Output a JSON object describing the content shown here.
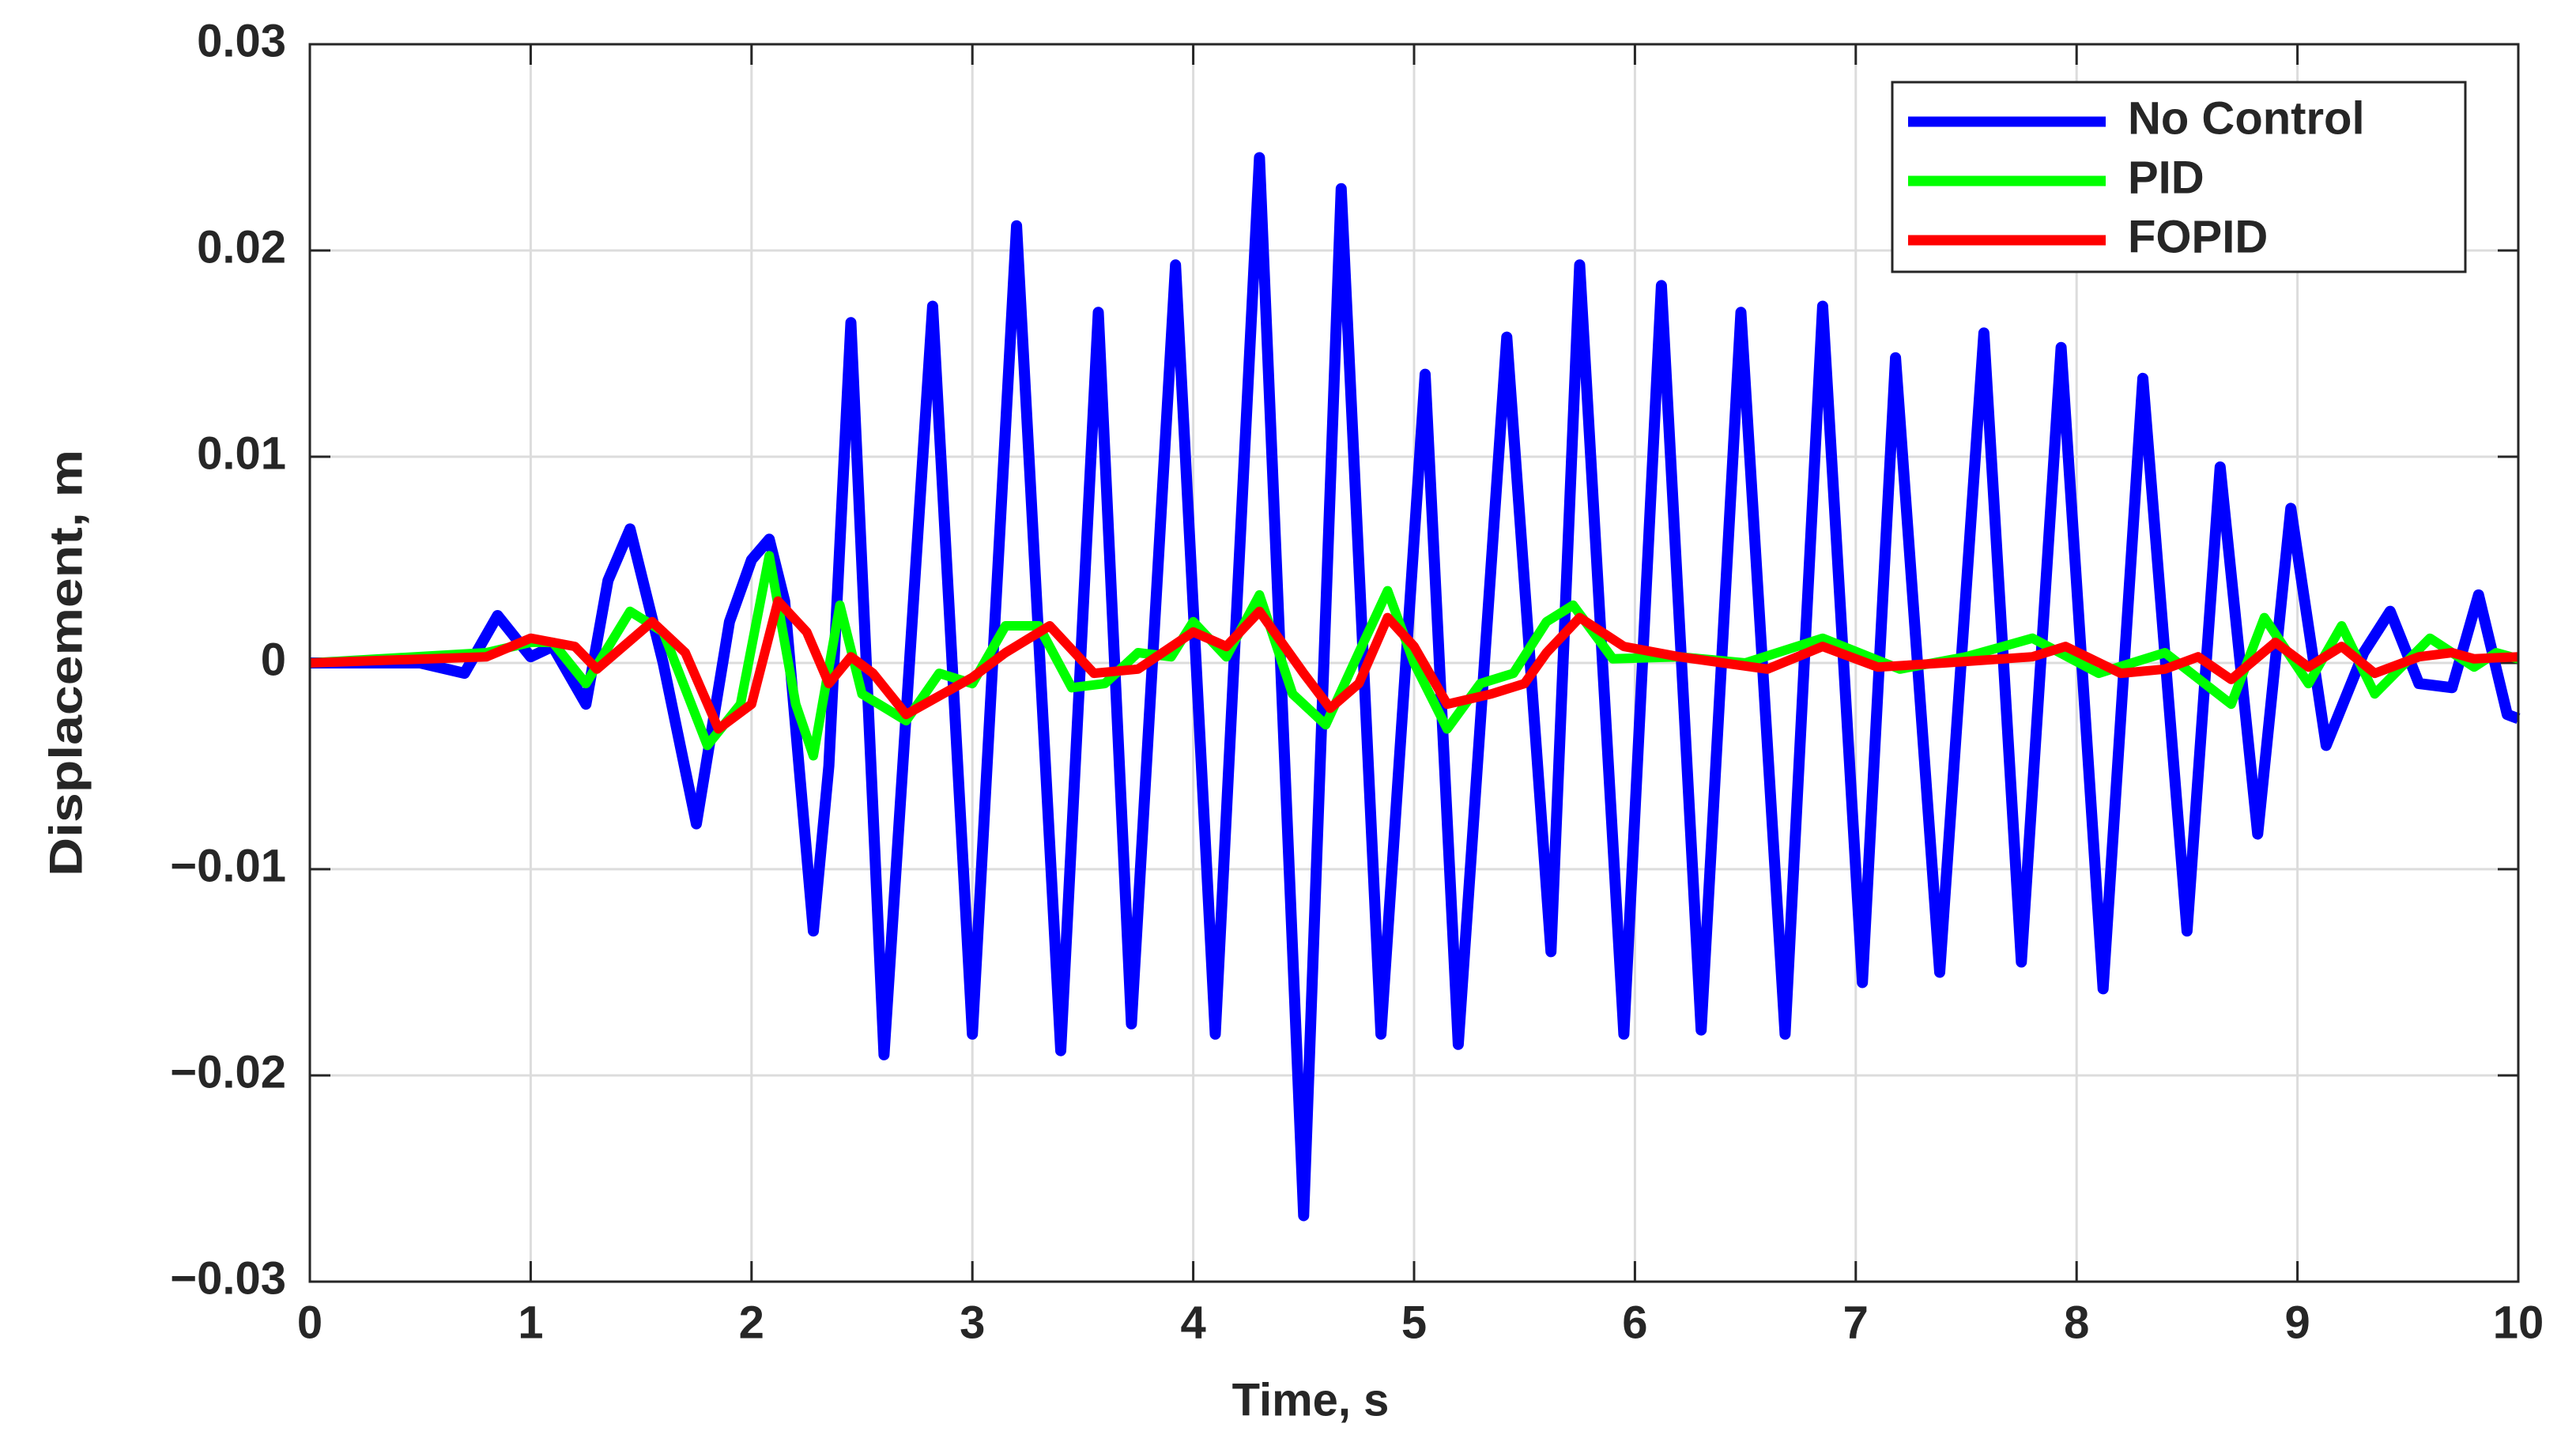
{
  "chart_data": {
    "type": "line",
    "xlabel": "Time, s",
    "ylabel": "Displacement, m",
    "xlim": [
      0,
      10
    ],
    "ylim": [
      -0.03,
      0.03
    ],
    "xticks": [
      0,
      1,
      2,
      3,
      4,
      5,
      6,
      7,
      8,
      9,
      10
    ],
    "yticks": [
      {
        "value": -0.03,
        "label": "−0.03"
      },
      {
        "value": -0.02,
        "label": "−0.02"
      },
      {
        "value": -0.01,
        "label": "−0.01"
      },
      0,
      0.01,
      0.02,
      0.03
    ],
    "grid": true,
    "legend": "upper right",
    "series": [
      {
        "name": "No Control",
        "color": "#0000ff",
        "x": [
          0,
          0.3,
          0.5,
          0.7,
          0.85,
          1.0,
          1.1,
          1.25,
          1.35,
          1.45,
          1.6,
          1.75,
          1.9,
          2.0,
          2.08,
          2.15,
          2.28,
          2.35,
          2.45,
          2.6,
          2.82,
          3.0,
          3.2,
          3.4,
          3.57,
          3.72,
          3.92,
          4.1,
          4.3,
          4.5,
          4.67,
          4.85,
          5.05,
          5.2,
          5.42,
          5.62,
          5.75,
          5.95,
          6.12,
          6.3,
          6.48,
          6.68,
          6.85,
          7.03,
          7.18,
          7.38,
          7.58,
          7.75,
          7.93,
          8.12,
          8.3,
          8.5,
          8.65,
          8.82,
          8.97,
          9.13,
          9.3,
          9.42,
          9.55,
          9.7,
          9.82,
          9.95,
          10
        ],
        "values": [
          0,
          0,
          0,
          -0.0005,
          0.0023,
          0.0003,
          0.0008,
          -0.002,
          0.004,
          0.0065,
          0,
          -0.0078,
          0.002,
          0.005,
          0.006,
          0.003,
          -0.013,
          -0.005,
          0.0165,
          -0.019,
          0.0173,
          -0.018,
          0.0212,
          -0.0188,
          0.017,
          -0.0175,
          0.0193,
          -0.018,
          0.0245,
          -0.0268,
          0.023,
          -0.018,
          0.014,
          -0.0185,
          0.0158,
          -0.014,
          0.0193,
          -0.018,
          0.0183,
          -0.0178,
          0.017,
          -0.018,
          0.0173,
          -0.0155,
          0.0148,
          -0.015,
          0.016,
          -0.0145,
          0.0153,
          -0.0158,
          0.0138,
          -0.013,
          0.0095,
          -0.0083,
          0.0075,
          -0.004,
          0.0005,
          0.0025,
          -0.001,
          -0.0012,
          0.0033,
          -0.0025,
          -0.0027
        ]
      },
      {
        "name": "PID",
        "color": "#00ff00",
        "x": [
          0,
          0.8,
          1.0,
          1.1,
          1.25,
          1.45,
          1.6,
          1.8,
          1.95,
          2.08,
          2.2,
          2.28,
          2.4,
          2.5,
          2.7,
          2.85,
          3.0,
          3.15,
          3.3,
          3.45,
          3.6,
          3.75,
          3.9,
          4.0,
          4.15,
          4.3,
          4.45,
          4.6,
          4.75,
          4.88,
          5.0,
          5.15,
          5.3,
          5.45,
          5.6,
          5.72,
          5.9,
          6.2,
          6.5,
          6.85,
          7.2,
          7.5,
          7.8,
          8.1,
          8.4,
          8.7,
          8.85,
          9.05,
          9.2,
          9.35,
          9.6,
          9.8,
          9.9,
          10
        ],
        "values": [
          0,
          0.0005,
          0.001,
          0.001,
          -0.001,
          0.0025,
          0.0015,
          -0.004,
          -0.002,
          0.0052,
          -0.002,
          -0.0045,
          0.0028,
          -0.0015,
          -0.0028,
          -0.0005,
          -0.001,
          0.0018,
          0.0018,
          -0.0012,
          -0.001,
          0.0005,
          0.0003,
          0.002,
          0.0003,
          0.0033,
          -0.0015,
          -0.003,
          0.0005,
          0.0035,
          0,
          -0.0032,
          -0.001,
          -0.0005,
          0.002,
          0.0028,
          0.0002,
          0.0003,
          0,
          0.0012,
          -0.0003,
          0.0003,
          0.0012,
          -0.0005,
          0.0005,
          -0.002,
          0.0022,
          -0.001,
          0.0018,
          -0.0015,
          0.0012,
          -0.0002,
          0.0005,
          0.0002
        ]
      },
      {
        "name": "FOPID",
        "color": "#ff0000",
        "x": [
          0,
          0.8,
          1.0,
          1.2,
          1.3,
          1.55,
          1.7,
          1.85,
          2.0,
          2.12,
          2.25,
          2.35,
          2.45,
          2.55,
          2.7,
          3.0,
          3.15,
          3.35,
          3.55,
          3.75,
          4.0,
          4.15,
          4.3,
          4.5,
          4.62,
          4.75,
          4.88,
          5.0,
          5.15,
          5.35,
          5.5,
          5.6,
          5.75,
          5.95,
          6.2,
          6.6,
          6.85,
          7.1,
          7.4,
          7.8,
          7.95,
          8.2,
          8.4,
          8.55,
          8.7,
          8.9,
          9.05,
          9.2,
          9.35,
          9.55,
          9.7,
          9.8,
          10
        ],
        "values": [
          0,
          0.0003,
          0.0012,
          0.0008,
          -0.0003,
          0.002,
          0.0005,
          -0.0032,
          -0.002,
          0.003,
          0.0015,
          -0.001,
          0.0003,
          -0.0005,
          -0.0025,
          -0.0007,
          0.0005,
          0.0018,
          -0.0005,
          -0.0003,
          0.0015,
          0.0008,
          0.0025,
          -0.0005,
          -0.0022,
          -0.001,
          0.0022,
          0.0008,
          -0.002,
          -0.0015,
          -0.001,
          0.0005,
          0.0022,
          0.0008,
          0.0003,
          -0.0003,
          0.0008,
          -0.0002,
          0,
          0.0003,
          0.0008,
          -0.0005,
          -0.0003,
          0.0003,
          -0.0008,
          0.001,
          -0.0002,
          0.0008,
          -0.0005,
          0.0003,
          0.0005,
          0.0002,
          0.0003
        ]
      }
    ]
  }
}
